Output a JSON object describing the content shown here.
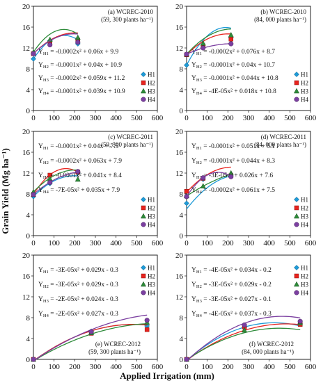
{
  "figure": {
    "ylabel": "Grain Yield (Mg ha⁻¹)",
    "xlabel": "Applied Irrigation (mm)"
  },
  "colors": {
    "H1": "#1f9bd7",
    "H2": "#e8231e",
    "H3": "#2e8b3a",
    "H4": "#7b3fa0"
  },
  "chart_data": [
    {
      "type": "scatter",
      "panel": "(a)",
      "title": "(a) WCREC-2010",
      "subtitle": "(59, 300 plants ha⁻¹)",
      "xlim": [
        0,
        600
      ],
      "ylim": [
        0,
        20
      ],
      "xticks": [
        0,
        100,
        200,
        300,
        400,
        500,
        600
      ],
      "yticks": [
        0,
        4,
        8,
        12,
        16,
        20
      ],
      "grid": false,
      "legend": "bottom-right",
      "legend_entries": [
        "H1",
        "H2",
        "H3",
        "H4"
      ],
      "x": [
        0,
        80,
        215
      ],
      "series": [
        {
          "name": "H1",
          "values": [
            9.9,
            13.4,
            12.8
          ],
          "fit": {
            "label": "Y",
            "sub": "H1",
            "rhs": " = -0.0002x² + 0.06x + 9.9",
            "a": -0.0002,
            "b": 0.06,
            "c": 9.9
          }
        },
        {
          "name": "H2",
          "values": [
            10.9,
            12.8,
            13.5
          ],
          "fit": {
            "label": "Y",
            "sub": "H2",
            "rhs": " = -0.0001x² + 0.04x + 10.9",
            "a": -0.0001,
            "b": 0.04,
            "c": 10.9
          }
        },
        {
          "name": "H3",
          "values": [
            11.2,
            13.6,
            14.0
          ],
          "fit": {
            "label": "Y",
            "sub": "H3",
            "rhs": " = -0.0002x² + 0.059x + 11.2",
            "a": -0.0002,
            "b": 0.059,
            "c": 11.2
          }
        },
        {
          "name": "H4",
          "values": [
            10.9,
            12.6,
            13.1
          ],
          "fit": {
            "label": "Y",
            "sub": "H4",
            "rhs": " = -0.0001x² + 0.039x + 10.9",
            "a": -0.0001,
            "b": 0.039,
            "c": 10.9
          }
        }
      ]
    },
    {
      "type": "scatter",
      "panel": "(b)",
      "title": "(b) WCREC-2010",
      "subtitle": "(84, 000 plants ha⁻¹)",
      "xlim": [
        0,
        600
      ],
      "ylim": [
        0,
        20
      ],
      "xticks": [
        0,
        100,
        200,
        300,
        400,
        500,
        600
      ],
      "yticks": [
        0,
        4,
        8,
        12,
        16,
        20
      ],
      "grid": false,
      "legend": "bottom-right",
      "legend_entries": [
        "H1",
        "H2",
        "H3",
        "H4"
      ],
      "x": [
        0,
        80,
        215
      ],
      "series": [
        {
          "name": "H1",
          "values": [
            8.7,
            12.1,
            14.0
          ],
          "fit": {
            "label": "Y",
            "sub": "H1",
            "rhs": " = -0.0002x² + 0.076x + 8.7",
            "a": -0.0002,
            "b": 0.076,
            "c": 8.7
          }
        },
        {
          "name": "H2",
          "values": [
            10.7,
            12.4,
            13.7
          ],
          "fit": {
            "label": "Y",
            "sub": "H2",
            "rhs": " = -0.0001x² + 0.04x + 10.7",
            "a": -0.0001,
            "b": 0.04,
            "c": 10.7
          }
        },
        {
          "name": "H3",
          "values": [
            10.8,
            12.9,
            14.5
          ],
          "fit": {
            "label": "Y",
            "sub": "H3",
            "rhs": " = -0.0001x² + 0.044x + 10.8",
            "a": -0.0001,
            "b": 0.044,
            "c": 10.8
          }
        },
        {
          "name": "H4",
          "values": [
            10.8,
            12.0,
            12.8
          ],
          "fit": {
            "label": "Y",
            "sub": "H4",
            "rhs": " = -4E-05x² + 0.018x + 10.8",
            "a": -4e-05,
            "b": 0.018,
            "c": 10.8
          }
        }
      ]
    },
    {
      "type": "scatter",
      "panel": "(c)",
      "title": "(c) WCREC-2011",
      "subtitle": "(59, 300 plants ha⁻¹)",
      "xlim": [
        0,
        600
      ],
      "ylim": [
        0,
        20
      ],
      "xticks": [
        0,
        100,
        200,
        300,
        400,
        500,
        600
      ],
      "yticks": [
        0,
        4,
        8,
        12,
        16,
        20
      ],
      "grid": false,
      "legend": "bottom-right",
      "legend_entries": [
        "H1",
        "H2",
        "H3",
        "H4"
      ],
      "x": [
        0,
        80,
        215
      ],
      "series": [
        {
          "name": "H1",
          "values": [
            7.5,
            10.0,
            12.0
          ],
          "fit": {
            "label": "Y",
            "sub": "H1",
            "rhs": " = -0.0001x² + 0.04x + 7.5",
            "a": -0.0001,
            "b": 0.04,
            "c": 7.5
          }
        },
        {
          "name": "H2",
          "values": [
            7.9,
            11.6,
            12.2
          ],
          "fit": {
            "label": "Y",
            "sub": "H2",
            "rhs": " = -0.0002x² + 0.063x + 7.9",
            "a": -0.0002,
            "b": 0.063,
            "c": 7.9
          }
        },
        {
          "name": "H3",
          "values": [
            8.4,
            10.9,
            10.8
          ],
          "fit": {
            "label": "Y",
            "sub": "H3",
            "rhs": " = -0.0001x² + 0.041x + 8.4",
            "a": -0.0001,
            "b": 0.041,
            "c": 8.4
          }
        },
        {
          "name": "H4",
          "values": [
            7.9,
            10.2,
            12.3
          ],
          "fit": {
            "label": "Y",
            "sub": "H4",
            "rhs": " = -7E-05x² + 0.035x + 7.9",
            "a": -7e-05,
            "b": 0.035,
            "c": 7.9
          }
        }
      ]
    },
    {
      "type": "scatter",
      "panel": "(d)",
      "title": "(d) WCREC-2011",
      "subtitle": "(84, 000 plants ha⁻¹)",
      "xlim": [
        0,
        600
      ],
      "ylim": [
        0,
        20
      ],
      "xticks": [
        0,
        100,
        200,
        300,
        400,
        500,
        600
      ],
      "yticks": [
        0,
        4,
        8,
        12,
        16,
        20
      ],
      "grid": false,
      "legend": "bottom-right",
      "legend_entries": [
        "H1",
        "H2",
        "H3",
        "H4"
      ],
      "x": [
        0,
        80,
        215
      ],
      "series": [
        {
          "name": "H1",
          "values": [
            6.2,
            10.8,
            11.6
          ],
          "fit": {
            "label": "Y",
            "sub": "H1",
            "rhs": " = -0.0001x² + 0.051x + 5.1",
            "a": -0.0001,
            "b": 0.051,
            "c": 5.1
          }
        },
        {
          "name": "H2",
          "values": [
            8.5,
            11.0,
            11.5
          ],
          "fit": {
            "label": "Y",
            "sub": "H2",
            "rhs": " = -0.0001x² + 0.044x + 8.3",
            "a": -0.0001,
            "b": 0.044,
            "c": 8.3
          }
        },
        {
          "name": "H3",
          "values": [
            7.6,
            9.5,
            12.0
          ],
          "fit": {
            "label": "Y",
            "sub": "H3",
            "rhs": " = -3E-05x² + 0.026x + 7.6",
            "a": -3e-05,
            "b": 0.026,
            "c": 7.6
          }
        },
        {
          "name": "H4",
          "values": [
            7.5,
            11.1,
            11.3
          ],
          "fit": {
            "label": "Y",
            "sub": "H4",
            "rhs": " = -0.0002x² + 0.061x + 7.5",
            "a": -0.0002,
            "b": 0.061,
            "c": 7.5
          }
        }
      ]
    },
    {
      "type": "scatter",
      "panel": "(e)",
      "title": "(e) WCREC-2012",
      "subtitle": "(59, 300 plants ha⁻¹)",
      "xlim": [
        0,
        600
      ],
      "ylim": [
        0,
        20
      ],
      "xticks": [
        0,
        100,
        200,
        300,
        400,
        500,
        600
      ],
      "yticks": [
        0,
        4,
        8,
        12,
        16,
        20
      ],
      "grid": false,
      "legend": "top-right",
      "legend_entries": [
        "H1",
        "H2",
        "H3",
        "H4"
      ],
      "x": [
        0,
        280,
        550
      ],
      "series": [
        {
          "name": "H1",
          "values": [
            0.0,
            5.4,
            6.4
          ],
          "fit": {
            "label": "Y",
            "sub": "H1",
            "rhs": " = -3E-05x² + 0.029x - 0.3",
            "a": -3e-05,
            "b": 0.029,
            "c": -0.3
          }
        },
        {
          "name": "H2",
          "values": [
            0.0,
            5.0,
            5.7
          ],
          "fit": {
            "label": "Y",
            "sub": "H2",
            "rhs": " = -3E-05x² + 0.029x - 0.3",
            "a": -3e-05,
            "b": 0.029,
            "c": -0.3
          }
        },
        {
          "name": "H3",
          "values": [
            0.0,
            5.1,
            7.1
          ],
          "fit": {
            "label": "Y",
            "sub": "H3",
            "rhs": " = -2E-05x² + 0.024x - 0.3",
            "a": -2e-05,
            "b": 0.024,
            "c": -0.3
          }
        },
        {
          "name": "H4",
          "values": [
            0.0,
            5.3,
            7.5
          ],
          "fit": {
            "label": "Y",
            "sub": "H4",
            "rhs": " = -2E-05x² + 0.027x - 0.3",
            "a": -2e-05,
            "b": 0.027,
            "c": -0.3
          }
        }
      ]
    },
    {
      "type": "scatter",
      "panel": "(f)",
      "title": "(f) WCREC-2012",
      "subtitle": "(84, 000 plants ha⁻¹)",
      "xlim": [
        0,
        600
      ],
      "ylim": [
        0,
        20
      ],
      "xticks": [
        0,
        100,
        200,
        300,
        400,
        500,
        600
      ],
      "yticks": [
        0,
        4,
        8,
        12,
        16,
        20
      ],
      "grid": false,
      "legend": "top-right",
      "legend_entries": [
        "H1",
        "H2",
        "H3",
        "H4"
      ],
      "x": [
        0,
        280,
        550
      ],
      "series": [
        {
          "name": "H1",
          "values": [
            0.0,
            6.1,
            6.9
          ],
          "fit": {
            "label": "Y",
            "sub": "H1",
            "rhs": " = -4E-05x² + 0.034x - 0.2",
            "a": -4e-05,
            "b": 0.034,
            "c": -0.2
          }
        },
        {
          "name": "H2",
          "values": [
            0.0,
            6.2,
            6.7
          ],
          "fit": {
            "label": "Y",
            "sub": "H2",
            "rhs": " = -3E-05x² + 0.029x - 0.2",
            "a": -3e-05,
            "b": 0.029,
            "c": -0.2
          }
        },
        {
          "name": "H3",
          "values": [
            0.0,
            5.6,
            7.0
          ],
          "fit": {
            "label": "Y",
            "sub": "H3",
            "rhs": " = -3E-05x² + 0.027x - 0.1",
            "a": -3e-05,
            "b": 0.027,
            "c": -0.1
          }
        },
        {
          "name": "H4",
          "values": [
            0.0,
            6.6,
            7.3
          ],
          "fit": {
            "label": "Y",
            "sub": "H4",
            "rhs": " = -4E-05x² + 0.037x - 0.3",
            "a": -4e-05,
            "b": 0.037,
            "c": -0.3
          }
        }
      ]
    }
  ]
}
